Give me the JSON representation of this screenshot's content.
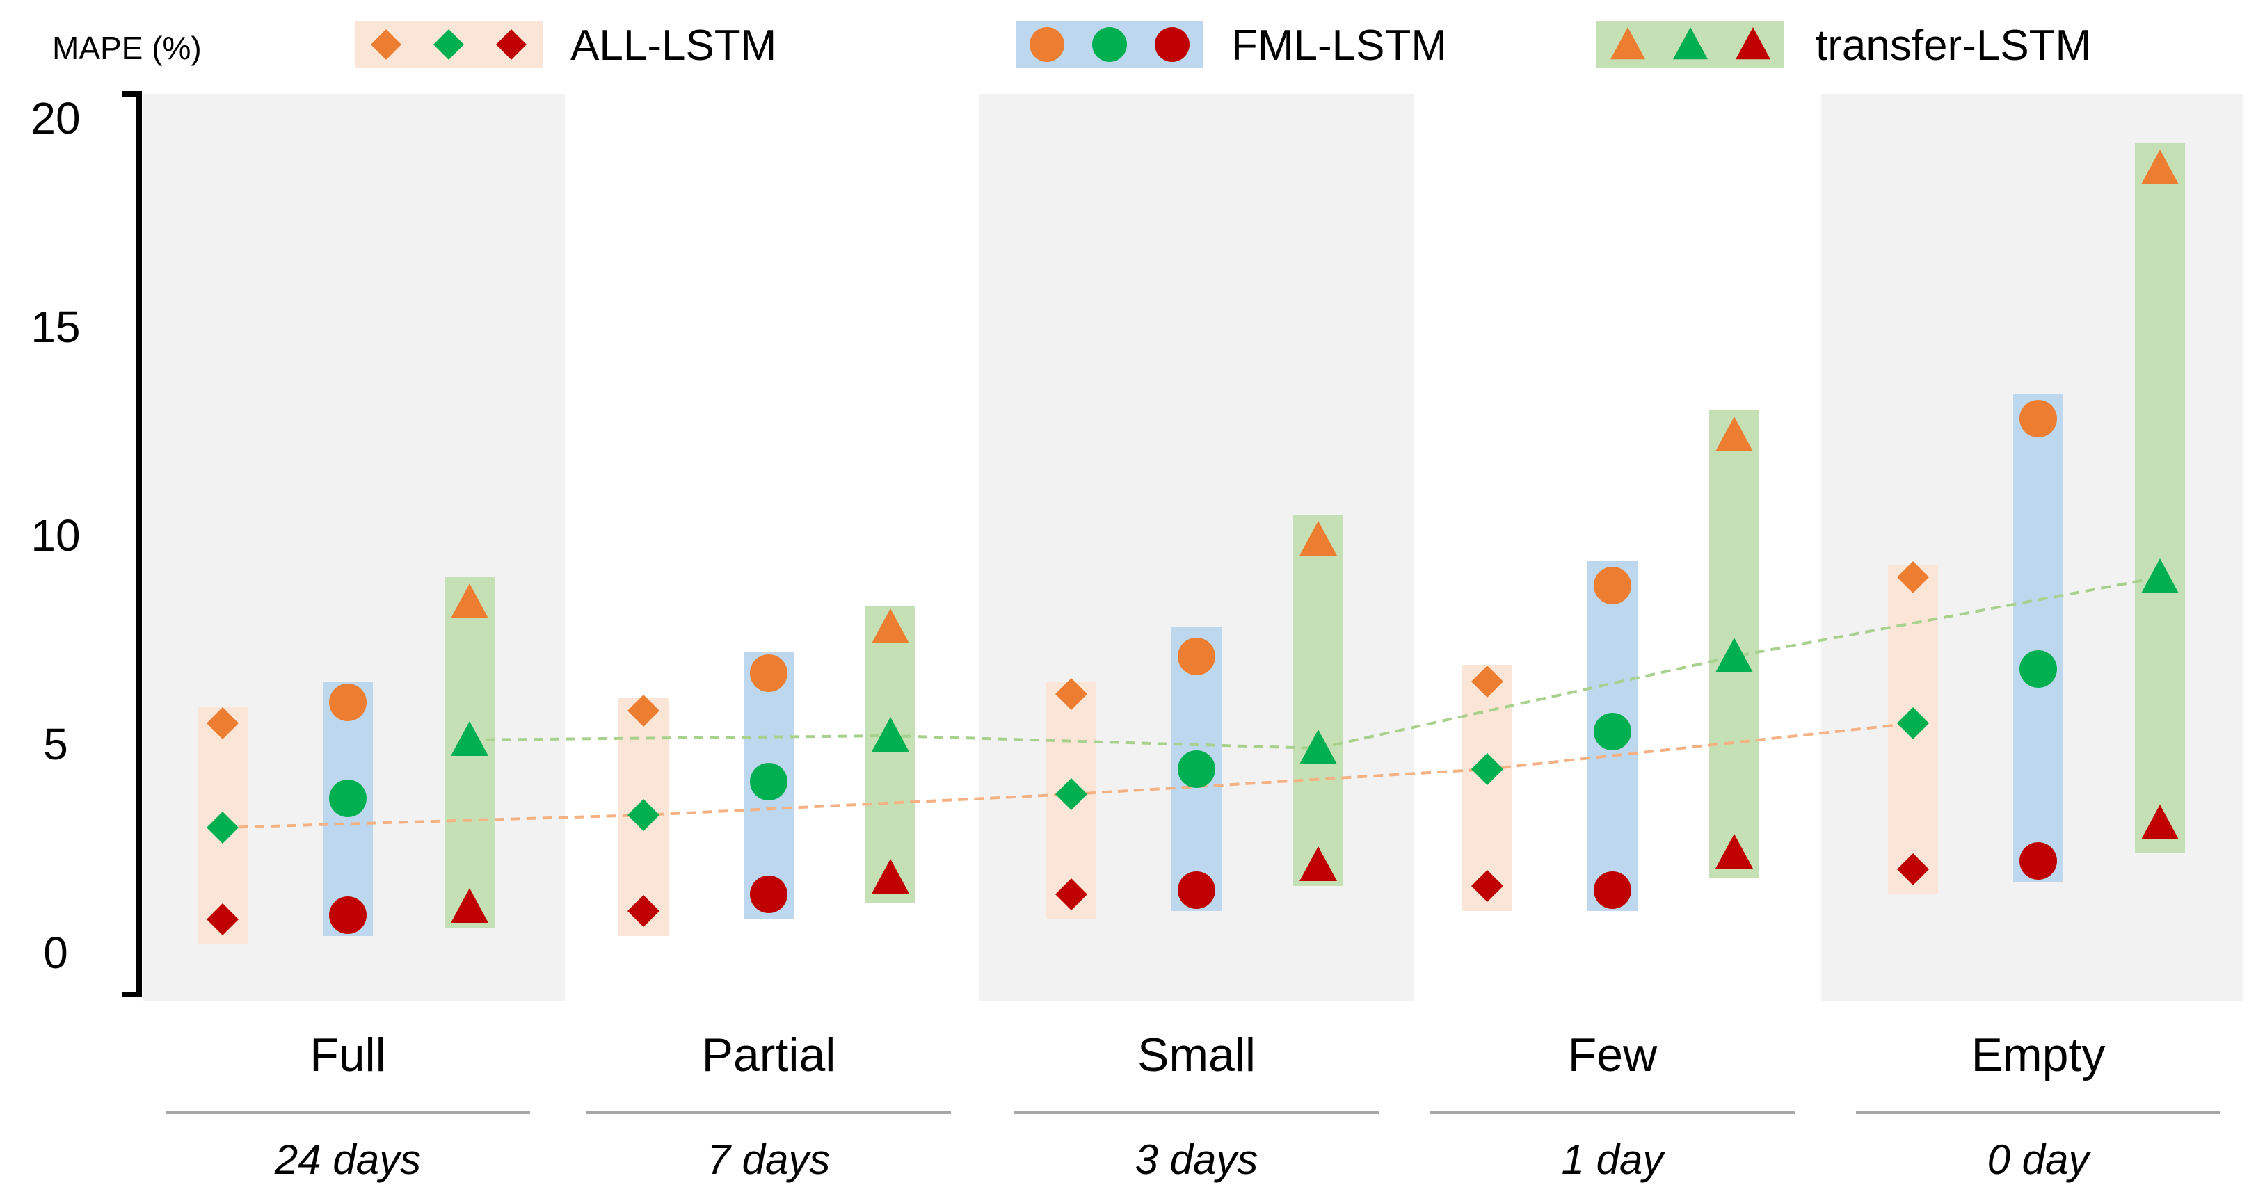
{
  "chart_data": {
    "type": "scatter",
    "title": "",
    "ylabel": "MAPE (%)",
    "xlabel": "",
    "ylim": [
      0,
      20
    ],
    "yticks": [
      "0",
      "5",
      "10",
      "15",
      "20"
    ],
    "grid": false,
    "legend_position": "top",
    "categories": [
      "Full",
      "Partial",
      "Small",
      "Few",
      "Empty"
    ],
    "category_sublabels": [
      "24 days",
      "7 days",
      "3 days",
      "1 day",
      "0 day"
    ],
    "series": [
      {
        "name": "ALL-LSTM",
        "marker": "diamond",
        "band_color": "#fbe5d6",
        "range": [
          [
            0.2,
            5.9
          ],
          [
            0.4,
            6.1
          ],
          [
            0.8,
            6.5
          ],
          [
            1.0,
            6.9
          ],
          [
            1.4,
            9.3
          ]
        ],
        "upper": [
          5.5,
          5.8,
          6.2,
          6.5,
          9.0
        ],
        "mean": [
          3.0,
          3.3,
          3.8,
          4.4,
          5.5
        ],
        "lower": [
          0.8,
          1.0,
          1.4,
          1.6,
          2.0
        ]
      },
      {
        "name": "FML-LSTM",
        "marker": "circle",
        "band_color": "#bdd7ee",
        "range": [
          [
            0.4,
            6.5
          ],
          [
            0.8,
            7.2
          ],
          [
            1.0,
            7.8
          ],
          [
            1.0,
            9.4
          ],
          [
            1.7,
            13.4
          ]
        ],
        "upper": [
          6.0,
          6.7,
          7.1,
          8.8,
          12.8
        ],
        "mean": [
          3.7,
          4.1,
          4.4,
          5.3,
          6.8
        ],
        "lower": [
          0.9,
          1.4,
          1.5,
          1.5,
          2.2
        ]
      },
      {
        "name": "transfer-LSTM",
        "marker": "triangle",
        "band_color": "#c5e0b4",
        "range": [
          [
            0.6,
            9.0
          ],
          [
            1.2,
            8.3
          ],
          [
            1.6,
            10.5
          ],
          [
            1.8,
            13.0
          ],
          [
            2.4,
            19.4
          ]
        ],
        "upper": [
          8.4,
          7.8,
          9.9,
          12.4,
          18.8
        ],
        "mean": [
          5.1,
          5.2,
          4.9,
          7.1,
          9.0
        ],
        "lower": [
          1.1,
          1.8,
          2.1,
          2.4,
          3.1
        ]
      }
    ],
    "trend_lines": [
      {
        "series": "ALL-LSTM",
        "color": "#f4b183",
        "values": [
          3.0,
          3.3,
          3.8,
          4.4,
          5.5
        ]
      },
      {
        "series": "transfer-LSTM",
        "color": "#a9d18e",
        "values": [
          5.1,
          5.2,
          4.9,
          7.1,
          9.0
        ]
      }
    ],
    "marker_colors": {
      "upper": "#ed7d31",
      "mean": "#00b050",
      "lower": "#c00000"
    },
    "group_shade_color": "#f2f2f2",
    "shaded_groups": [
      0,
      2,
      4
    ]
  }
}
